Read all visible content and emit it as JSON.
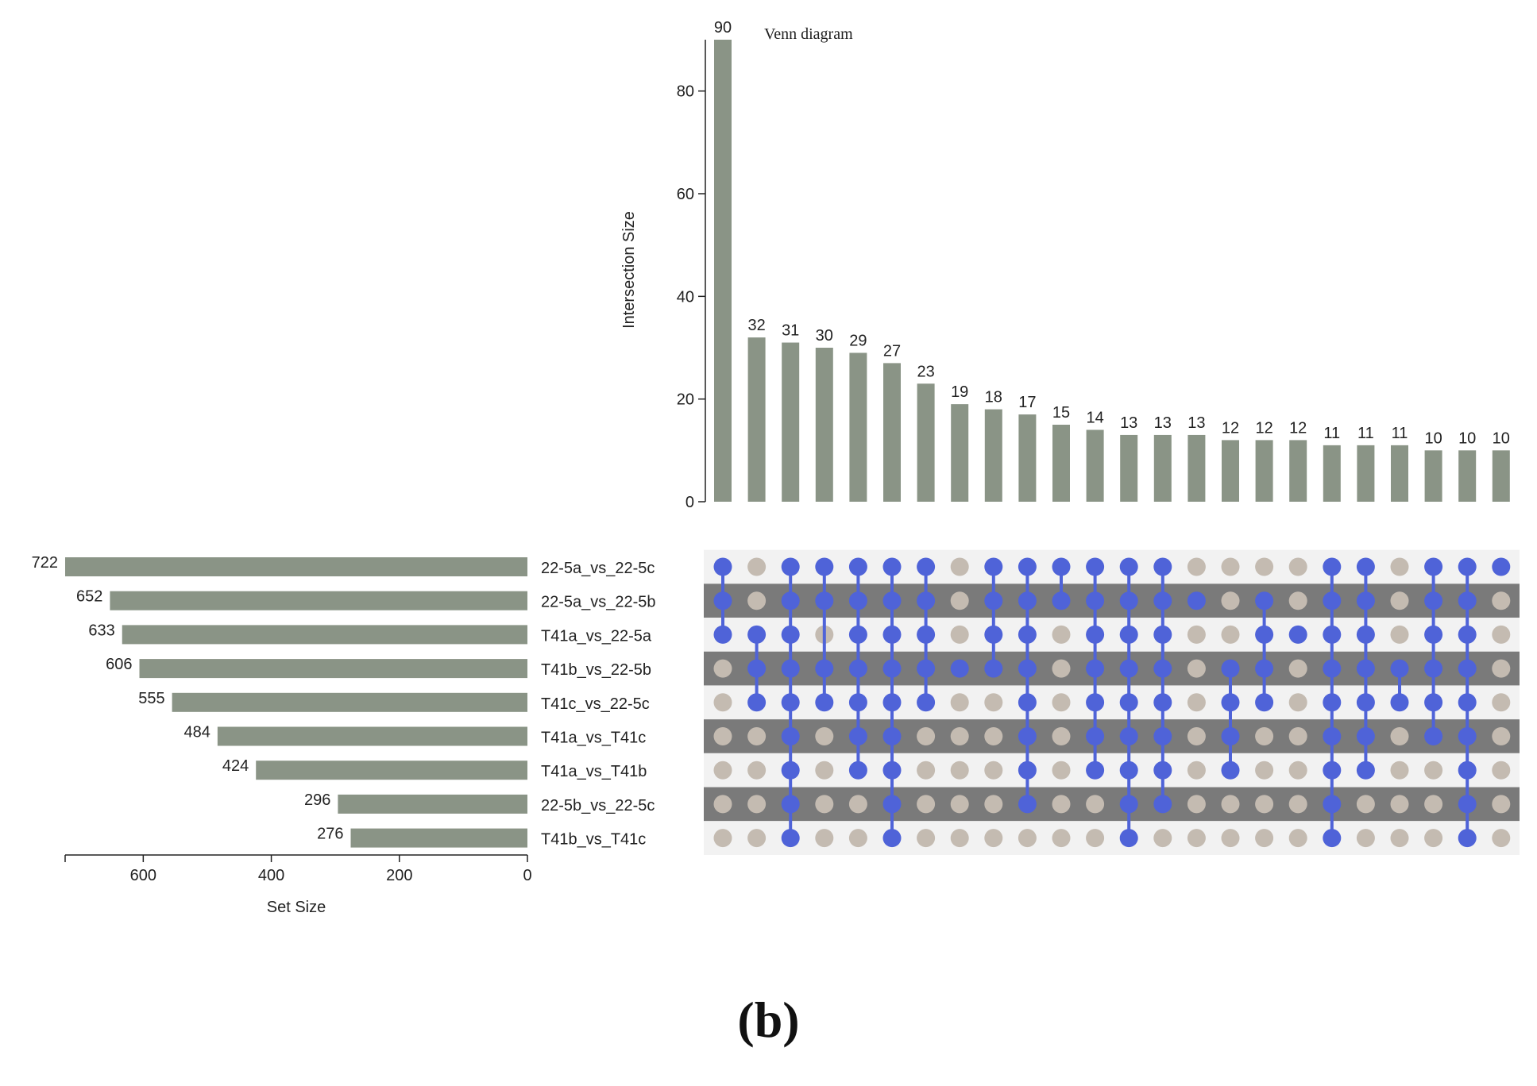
{
  "chart_data": {
    "type": "bar",
    "title": "Venn diagram",
    "intersection_ylabel": "Intersection Size",
    "intersection_ylim": [
      0,
      90
    ],
    "intersection_yticks": [
      0,
      20,
      40,
      60,
      80
    ],
    "intersection_values": [
      90,
      32,
      31,
      30,
      29,
      27,
      23,
      19,
      18,
      17,
      15,
      14,
      13,
      13,
      13,
      12,
      12,
      12,
      11,
      11,
      11,
      10,
      10,
      10
    ],
    "set_xlabel": "Set Size",
    "set_xlim": [
      0,
      722
    ],
    "set_xticks": [
      600,
      400,
      200,
      0
    ],
    "sets": [
      {
        "name": "22-5a_vs_22-5c",
        "size": 722
      },
      {
        "name": "22-5a_vs_22-5b",
        "size": 652
      },
      {
        "name": "T41a_vs_22-5a",
        "size": 633
      },
      {
        "name": "T41b_vs_22-5b",
        "size": 606
      },
      {
        "name": "T41c_vs_22-5c",
        "size": 555
      },
      {
        "name": "T41a_vs_T41c",
        "size": 484
      },
      {
        "name": "T41a_vs_T41b",
        "size": 424
      },
      {
        "name": "22-5b_vs_22-5c",
        "size": 296
      },
      {
        "name": "T41b_vs_T41c",
        "size": 276
      }
    ],
    "membership": [
      [
        0,
        1,
        2
      ],
      [
        2,
        3,
        4
      ],
      [
        0,
        1,
        2,
        3,
        4,
        5,
        6,
        7,
        8
      ],
      [
        0,
        1,
        3,
        4
      ],
      [
        0,
        1,
        2,
        3,
        4,
        5,
        6
      ],
      [
        0,
        1,
        2,
        3,
        4,
        5,
        6,
        7,
        8
      ],
      [
        0,
        1,
        2,
        3,
        4
      ],
      [
        3
      ],
      [
        0,
        1,
        2,
        3
      ],
      [
        0,
        1,
        2,
        3,
        4,
        5,
        6,
        7
      ],
      [
        0,
        1
      ],
      [
        0,
        1,
        2,
        3,
        4,
        5,
        6
      ],
      [
        0,
        1,
        2,
        3,
        4,
        5,
        6,
        7,
        8
      ],
      [
        0,
        1,
        2,
        3,
        4,
        5,
        6,
        7
      ],
      [
        1
      ],
      [
        3,
        4,
        5,
        6
      ],
      [
        1,
        2,
        3,
        4
      ],
      [
        2
      ],
      [
        0,
        1,
        2,
        3,
        4,
        5,
        6,
        7,
        8
      ],
      [
        0,
        1,
        2,
        3,
        4,
        5,
        6
      ],
      [
        3,
        4
      ],
      [
        0,
        1,
        2,
        3,
        4,
        5
      ],
      [
        0,
        1,
        2,
        3,
        4,
        5,
        6,
        7,
        8
      ],
      [
        0
      ]
    ],
    "colors": {
      "bar": "#8a9486",
      "dot_active": "#4f63d8",
      "dot_inactive": "#c4bbb1",
      "stripe_dark": "#7a7a7a",
      "stripe_light": "#f2f2f2"
    }
  },
  "figure_label": "(b)"
}
